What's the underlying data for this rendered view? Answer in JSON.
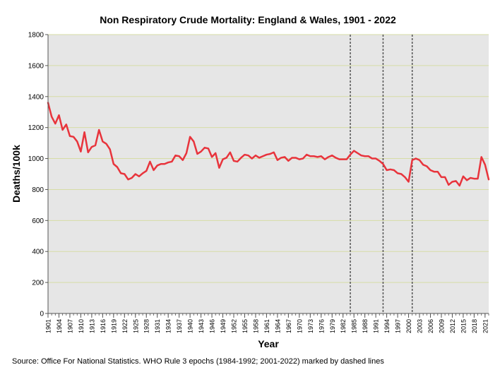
{
  "chart_data": {
    "type": "line",
    "title": "Non Respiratory Crude Mortality: England & Wales, 1901 - 2022",
    "xlabel": "Year",
    "ylabel": "Deaths/100k",
    "xlim": [
      1901,
      2022
    ],
    "ylim": [
      0,
      1800
    ],
    "y_ticks": [
      0,
      200,
      400,
      600,
      800,
      1000,
      1200,
      1400,
      1600,
      1800
    ],
    "y_tick_labels": [
      "0",
      "200",
      "400",
      "600",
      "800",
      "1000",
      "1200",
      "1400",
      "1600",
      "1800"
    ],
    "x_ticks": [
      1901,
      1904,
      1907,
      1910,
      1913,
      1916,
      1919,
      1922,
      1925,
      1928,
      1931,
      1934,
      1937,
      1940,
      1943,
      1946,
      1949,
      1952,
      1955,
      1958,
      1961,
      1964,
      1967,
      1970,
      1973,
      1976,
      1979,
      1982,
      1985,
      1988,
      1991,
      1994,
      1997,
      2000,
      2003,
      2006,
      2009,
      2012,
      2015,
      2018,
      2021
    ],
    "x_tick_labels": [
      "1901",
      "1904",
      "1907",
      "1910",
      "1913",
      "1916",
      "1919",
      "1922",
      "1925",
      "1928",
      "1931",
      "1934",
      "1937",
      "1940",
      "1943",
      "1946",
      "1949",
      "1952",
      "1955",
      "1958",
      "1961",
      "1964",
      "1967",
      "1970",
      "1973",
      "1976",
      "1979",
      "1982",
      "1985",
      "1988",
      "1991",
      "1994",
      "1997",
      "2000",
      "2003",
      "2006",
      "2009",
      "2012",
      "2015",
      "2018",
      "2021"
    ],
    "grid": true,
    "epoch_markers": [
      1984,
      1993,
      2001
    ],
    "series": [
      {
        "name": "Non Respiratory Crude Mortality",
        "color": "#e8343c",
        "x": [
          1901,
          1902,
          1903,
          1904,
          1905,
          1906,
          1907,
          1908,
          1909,
          1910,
          1911,
          1912,
          1913,
          1914,
          1915,
          1916,
          1917,
          1918,
          1919,
          1920,
          1921,
          1922,
          1923,
          1924,
          1925,
          1926,
          1927,
          1928,
          1929,
          1930,
          1931,
          1932,
          1933,
          1934,
          1935,
          1936,
          1937,
          1938,
          1939,
          1940,
          1941,
          1942,
          1943,
          1944,
          1945,
          1946,
          1947,
          1948,
          1949,
          1950,
          1951,
          1952,
          1953,
          1954,
          1955,
          1956,
          1957,
          1958,
          1959,
          1960,
          1961,
          1962,
          1963,
          1964,
          1965,
          1966,
          1967,
          1968,
          1969,
          1970,
          1971,
          1972,
          1973,
          1974,
          1975,
          1976,
          1977,
          1978,
          1979,
          1980,
          1981,
          1982,
          1983,
          1984,
          1985,
          1986,
          1987,
          1988,
          1989,
          1990,
          1991,
          1992,
          1993,
          1994,
          1995,
          1996,
          1997,
          1998,
          1999,
          2000,
          2001,
          2002,
          2003,
          2004,
          2005,
          2006,
          2007,
          2008,
          2009,
          2010,
          2011,
          2012,
          2013,
          2014,
          2015,
          2016,
          2017,
          2018,
          2019,
          2020,
          2021,
          2022
        ],
        "values": [
          1360,
          1270,
          1225,
          1280,
          1185,
          1220,
          1145,
          1140,
          1110,
          1045,
          1170,
          1040,
          1075,
          1085,
          1185,
          1110,
          1095,
          1060,
          965,
          945,
          905,
          900,
          865,
          875,
          900,
          885,
          905,
          920,
          980,
          925,
          955,
          965,
          965,
          975,
          980,
          1020,
          1015,
          990,
          1035,
          1140,
          1110,
          1030,
          1045,
          1070,
          1065,
          1010,
          1035,
          940,
          995,
          1005,
          1040,
          985,
          980,
          1005,
          1025,
          1020,
          1000,
          1020,
          1005,
          1015,
          1025,
          1030,
          1040,
          990,
          1005,
          1010,
          985,
          1005,
          1005,
          995,
          1000,
          1025,
          1015,
          1015,
          1010,
          1015,
          995,
          1010,
          1020,
          1005,
          995,
          995,
          995,
          1025,
          1050,
          1035,
          1020,
          1015,
          1015,
          1000,
          1000,
          985,
          965,
          925,
          930,
          925,
          905,
          900,
          880,
          850,
          990,
          1000,
          990,
          960,
          950,
          925,
          915,
          915,
          880,
          880,
          830,
          850,
          855,
          825,
          885,
          860,
          875,
          870,
          870,
          1010,
          960,
          865
        ]
      }
    ]
  },
  "source_note": "Source: Office For National Statistics. WHO Rule 3 epochs (1984-1992; 2001-2022) marked by dashed lines",
  "colors": {
    "plot_bg": "#e6e6e6",
    "grid": "#d6dca6",
    "axis": "#555555",
    "epoch_line": "#555555"
  }
}
